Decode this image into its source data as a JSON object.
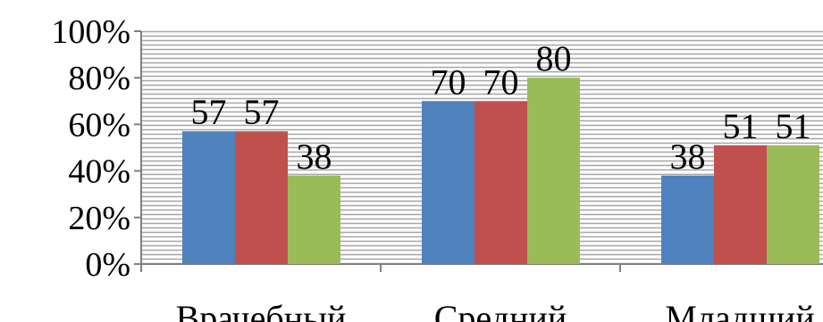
{
  "chart_data": {
    "type": "bar",
    "title": "",
    "xlabel": "",
    "ylabel": "",
    "categories": [
      "Врачебный",
      "Средний",
      "Младший"
    ],
    "series": [
      {
        "color": "#4F81BD",
        "values": [
          57,
          70,
          38
        ]
      },
      {
        "color": "#C0504D",
        "values": [
          57,
          70,
          51
        ]
      },
      {
        "color": "#9BBB59",
        "values": [
          38,
          80,
          51
        ]
      }
    ],
    "data_labels": [
      [
        "57",
        "70",
        "38"
      ],
      [
        "57",
        "70",
        "51"
      ],
      [
        "38",
        "80",
        "51"
      ]
    ],
    "ylim": [
      0,
      100
    ],
    "y_ticks": [
      0,
      20,
      40,
      60,
      80,
      100
    ],
    "y_tick_labels": [
      "0%",
      "20%",
      "40%",
      "60%",
      "80%",
      "100%"
    ],
    "grid": "dense horizontal hatch",
    "grid_color": "#A6A6A6",
    "axis_color": "#808080",
    "legend": "none"
  }
}
